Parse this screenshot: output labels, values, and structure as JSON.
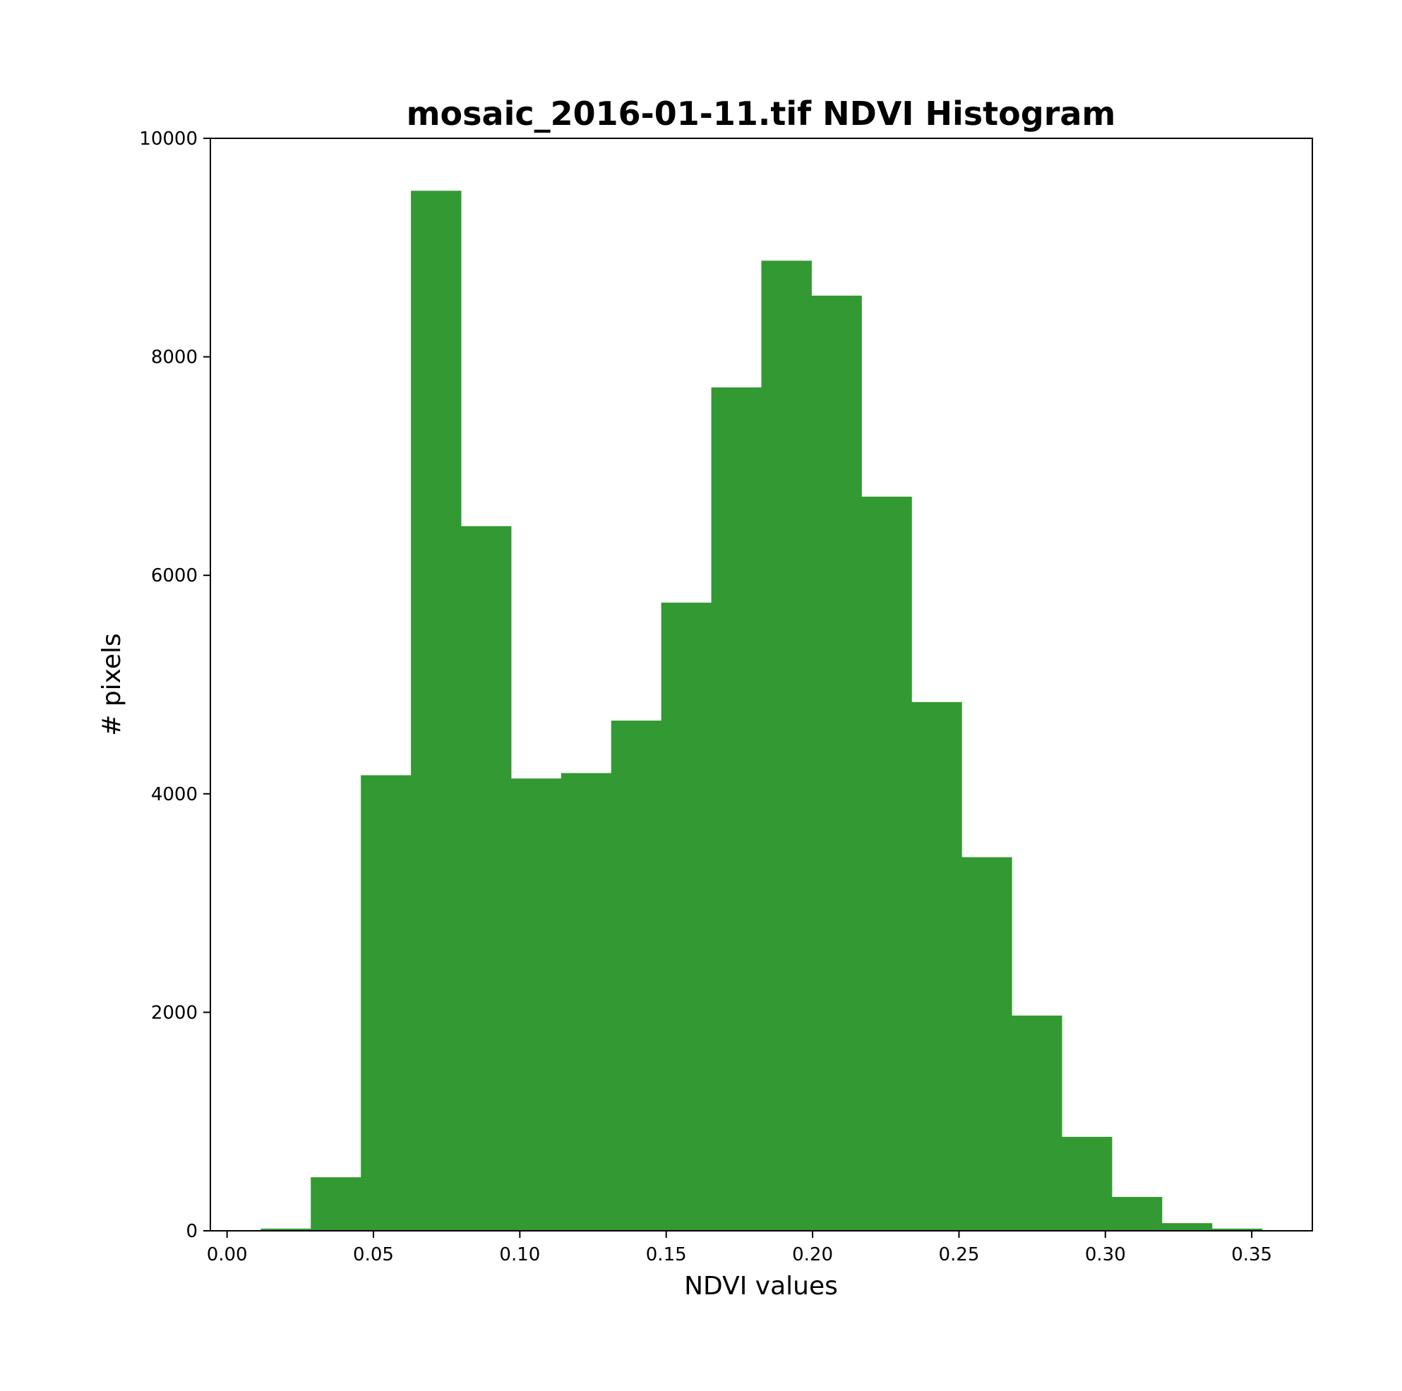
{
  "chart_data": {
    "type": "bar",
    "title": "mosaic_2016-01-11.tif NDVI Histogram",
    "xlabel": "NDVI values",
    "ylabel": "# pixels",
    "bar_color": "#339933",
    "bin_edges": [
      0.0115,
      0.0286,
      0.0457,
      0.0628,
      0.0799,
      0.097,
      0.1141,
      0.1312,
      0.1483,
      0.1654,
      0.1825,
      0.1996,
      0.2167,
      0.2338,
      0.2509,
      0.268,
      0.2851,
      0.3022,
      0.3193,
      0.3364,
      0.3535
    ],
    "values": [
      20,
      490,
      4170,
      9520,
      6450,
      4140,
      4190,
      4670,
      5750,
      7720,
      8880,
      8560,
      6720,
      4840,
      3420,
      1970,
      860,
      310,
      70,
      20
    ],
    "xlim": [
      -0.0057,
      0.3707
    ],
    "ylim": [
      0,
      10000
    ],
    "xticks": [
      0.0,
      0.05,
      0.1,
      0.15,
      0.2,
      0.25,
      0.3,
      0.35
    ],
    "xtick_labels": [
      "0.00",
      "0.05",
      "0.10",
      "0.15",
      "0.20",
      "0.25",
      "0.30",
      "0.35"
    ],
    "yticks": [
      0,
      2000,
      4000,
      6000,
      8000,
      10000
    ],
    "ytick_labels": [
      "0",
      "2000",
      "4000",
      "6000",
      "8000",
      "10000"
    ],
    "grid": false,
    "legend": false
  }
}
